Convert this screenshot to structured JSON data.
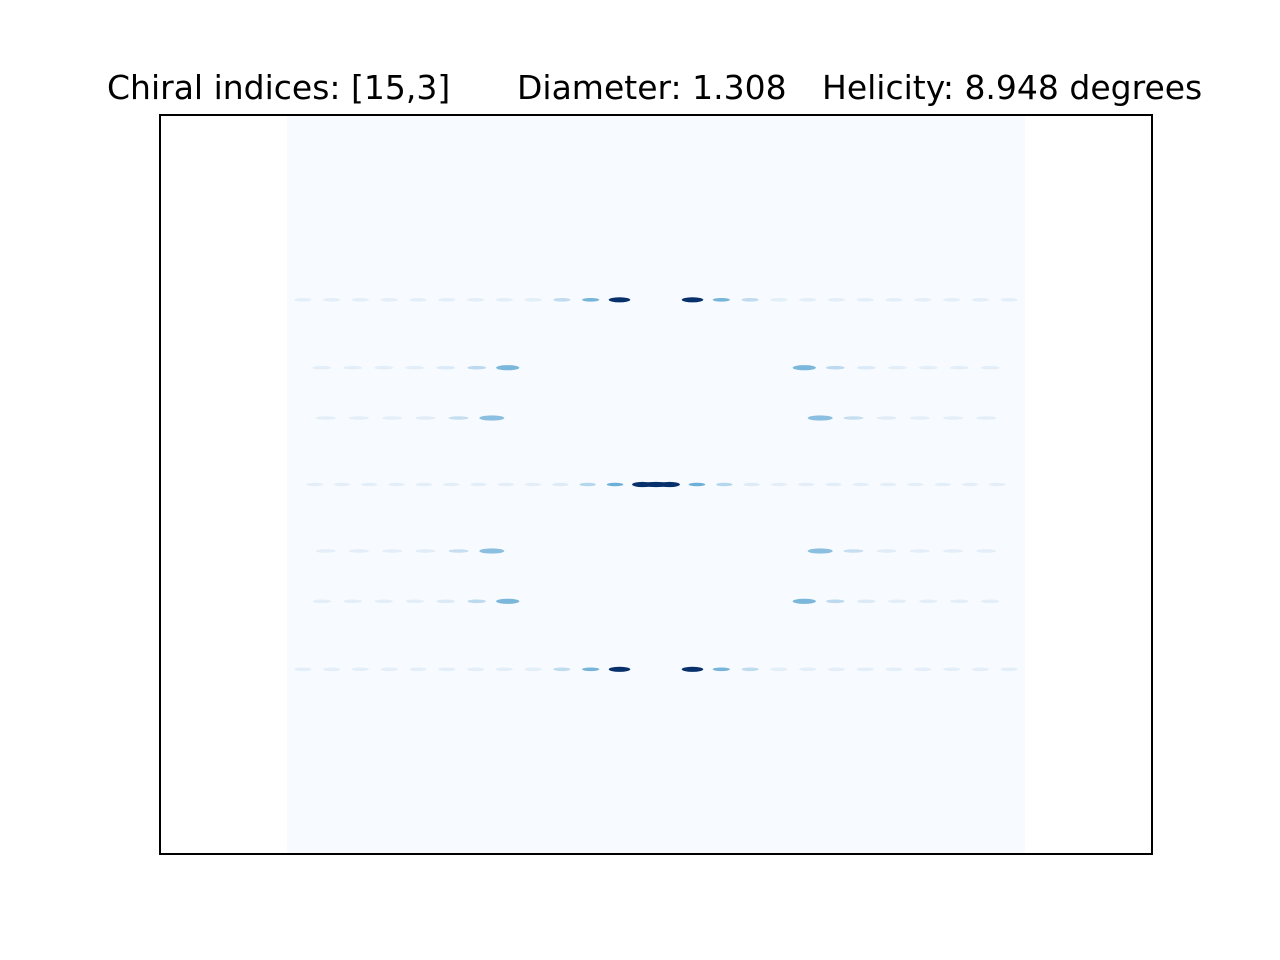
{
  "chart_data": {
    "type": "heatmap",
    "title_parts": {
      "chiral": "Chiral indices: [15,3]",
      "diameter": "Diameter: 1.308",
      "helicity": "Helicity: 8.948 degrees"
    },
    "xlabel": "",
    "ylabel": "",
    "axes_ticks": "none",
    "colormap": "Blues",
    "background_color": "#f7fbff",
    "low_color": "#deebf7",
    "mid_color": "#6baed6",
    "high_color": "#08306b",
    "grid": false,
    "layer_lines": [
      {
        "y": 0.75,
        "inner_gap": 0.03,
        "peak": 1.0,
        "decay": 0.55,
        "period": 0.039
      },
      {
        "y": 0.658,
        "inner_gap": 0.18,
        "peak": 0.45,
        "decay": 0.4,
        "period": 0.042
      },
      {
        "y": 0.59,
        "inner_gap": 0.2,
        "peak": 0.4,
        "decay": 0.4,
        "period": 0.045
      },
      {
        "y": 0.5,
        "inner_gap": 0.0,
        "peak": 1.0,
        "decay": 0.5,
        "period": 0.037
      },
      {
        "y": 0.41,
        "inner_gap": 0.2,
        "peak": 0.4,
        "decay": 0.4,
        "period": 0.045
      },
      {
        "y": 0.342,
        "inner_gap": 0.18,
        "peak": 0.45,
        "decay": 0.4,
        "period": 0.042
      },
      {
        "y": 0.25,
        "inner_gap": 0.03,
        "peak": 1.0,
        "decay": 0.55,
        "period": 0.039
      }
    ]
  }
}
